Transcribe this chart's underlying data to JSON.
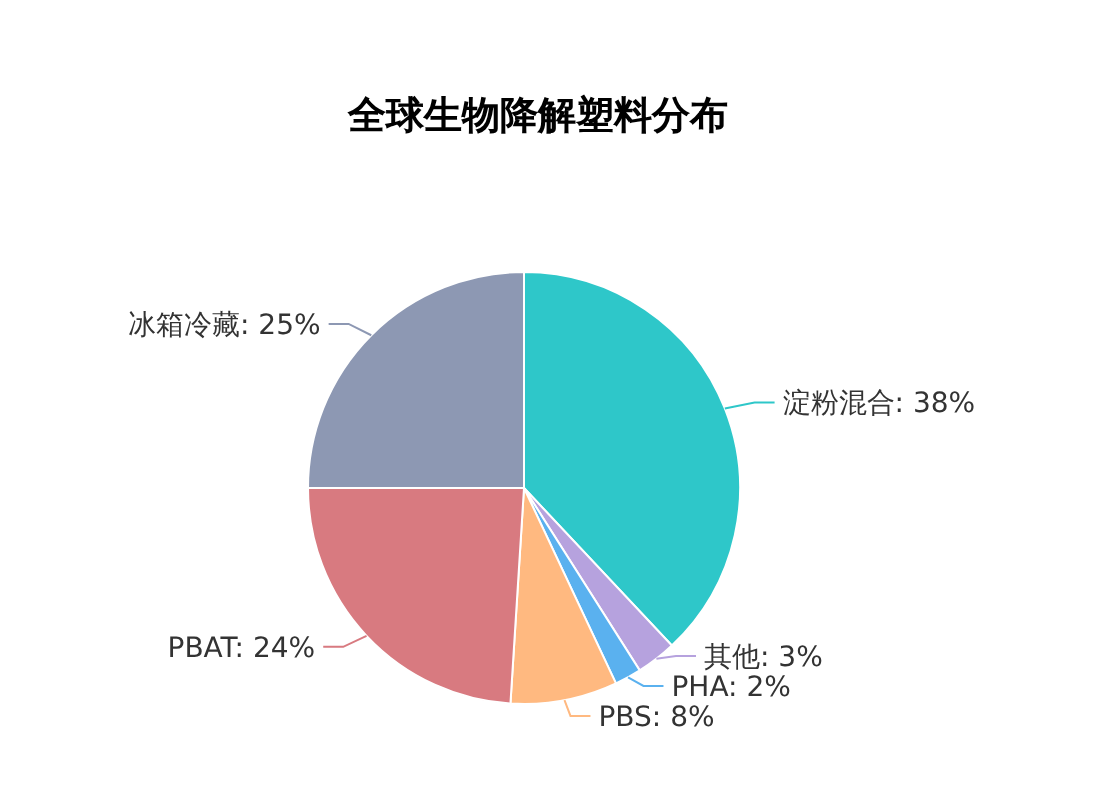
{
  "chart_data": {
    "type": "pie",
    "title": "全球生物降解塑料分布",
    "categories": [
      "淀粉混合",
      "其他",
      "PHA",
      "PBS",
      "PBAT",
      "冰箱冷藏"
    ],
    "values": [
      38,
      3,
      2,
      8,
      24,
      25
    ],
    "colors": [
      "#2ec7c9",
      "#b6a2de",
      "#5ab1ef",
      "#ffb980",
      "#d87a80",
      "#8d98b3"
    ],
    "value_labels": [
      ": 38%",
      ": 3%",
      ": 2%",
      ": 8%",
      ": 24%",
      ": 25%"
    ]
  }
}
